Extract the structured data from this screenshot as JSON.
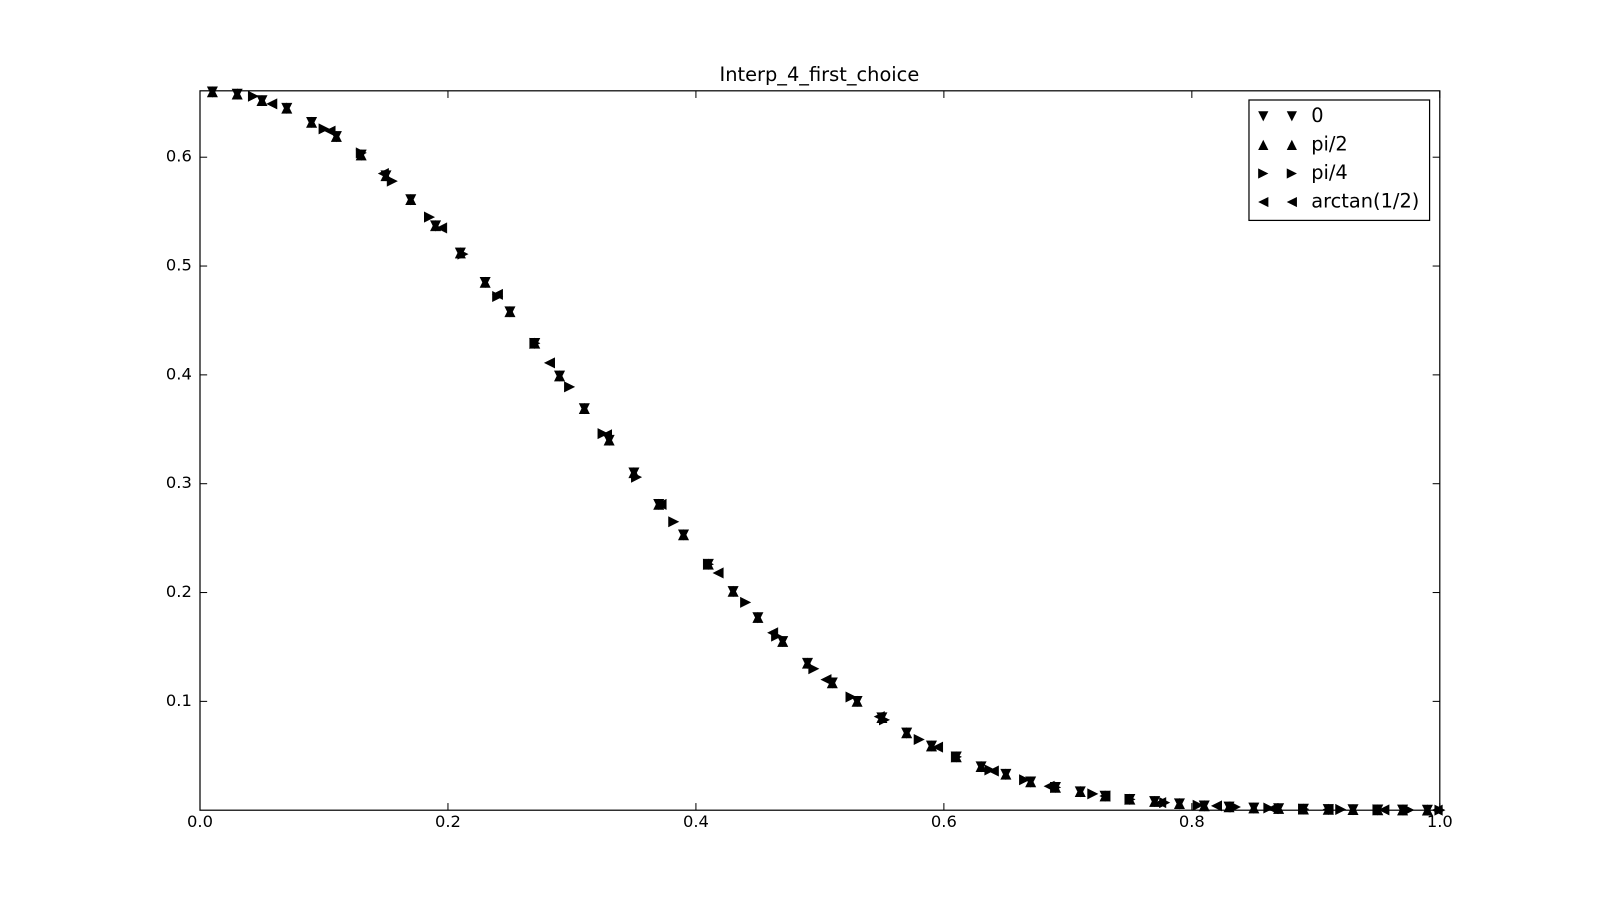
{
  "chart_data": {
    "type": "scatter",
    "title": "Interp_4_first_choice",
    "xlim": [
      0,
      1
    ],
    "ylim": [
      0,
      0.661
    ],
    "xticks": [
      {
        "value": 0,
        "label": "0.0"
      },
      0.2,
      0.4,
      0.6,
      0.8,
      {
        "value": 1,
        "label": "1.0"
      }
    ],
    "yticks": [
      0.1,
      0.2,
      0.3,
      0.4,
      0.5,
      0.6
    ],
    "grid": false,
    "legend": "upper right",
    "series": [
      {
        "name": "0",
        "marker": "v",
        "color": "#000000",
        "x": [
          0.01,
          0.03,
          0.05,
          0.07,
          0.09,
          0.11,
          0.13,
          0.15,
          0.17,
          0.19,
          0.21,
          0.23,
          0.25,
          0.27,
          0.29,
          0.31,
          0.33,
          0.35,
          0.37,
          0.39,
          0.41,
          0.43,
          0.45,
          0.47,
          0.49,
          0.51,
          0.53,
          0.55,
          0.57,
          0.59,
          0.61,
          0.63,
          0.65,
          0.67,
          0.69,
          0.71,
          0.73,
          0.75,
          0.77,
          0.79,
          0.81,
          0.83,
          0.85,
          0.87,
          0.89,
          0.91,
          0.93,
          0.95,
          0.97,
          0.99
        ],
        "values": [
          0.66,
          0.658,
          0.652,
          0.645,
          0.632,
          0.619,
          0.602,
          0.583,
          0.561,
          0.537,
          0.512,
          0.485,
          0.458,
          0.429,
          0.399,
          0.369,
          0.34,
          0.31,
          0.281,
          0.253,
          0.226,
          0.201,
          0.177,
          0.155,
          0.135,
          0.117,
          0.1,
          0.085,
          0.071,
          0.059,
          0.049,
          0.04,
          0.033,
          0.026,
          0.021,
          0.017,
          0.013,
          0.01,
          0.008,
          0.006,
          0.004,
          0.003,
          0.002,
          0.0015,
          0.001,
          0.0007,
          0.0005,
          0.0003,
          0.0002,
          0.0001
        ]
      },
      {
        "name": "pi/2",
        "marker": "^",
        "color": "#000000",
        "x": [
          0.01,
          0.03,
          0.05,
          0.07,
          0.09,
          0.11,
          0.13,
          0.15,
          0.17,
          0.19,
          0.21,
          0.23,
          0.25,
          0.27,
          0.29,
          0.31,
          0.33,
          0.35,
          0.37,
          0.39,
          0.41,
          0.43,
          0.45,
          0.47,
          0.49,
          0.51,
          0.53,
          0.55,
          0.57,
          0.59,
          0.61,
          0.63,
          0.65,
          0.67,
          0.69,
          0.71,
          0.73,
          0.75,
          0.77,
          0.79,
          0.81,
          0.83,
          0.85,
          0.87,
          0.89,
          0.91,
          0.93,
          0.95,
          0.97,
          0.99
        ],
        "values": [
          0.66,
          0.658,
          0.652,
          0.645,
          0.632,
          0.619,
          0.602,
          0.583,
          0.561,
          0.537,
          0.512,
          0.485,
          0.458,
          0.429,
          0.399,
          0.369,
          0.34,
          0.31,
          0.281,
          0.253,
          0.226,
          0.201,
          0.177,
          0.155,
          0.135,
          0.117,
          0.1,
          0.085,
          0.071,
          0.059,
          0.049,
          0.04,
          0.033,
          0.026,
          0.021,
          0.017,
          0.013,
          0.01,
          0.008,
          0.006,
          0.004,
          0.003,
          0.002,
          0.0015,
          0.001,
          0.0007,
          0.0005,
          0.0003,
          0.0002,
          0.0001
        ]
      },
      {
        "name": "pi/4",
        "marker": ">",
        "color": "#000000",
        "x": [
          0.043,
          0.1,
          0.13,
          0.155,
          0.185,
          0.212,
          0.24,
          0.27,
          0.298,
          0.325,
          0.352,
          0.382,
          0.41,
          0.44,
          0.465,
          0.495,
          0.525,
          0.552,
          0.58,
          0.61,
          0.637,
          0.665,
          0.69,
          0.72,
          0.75,
          0.778,
          0.805,
          0.835,
          0.862,
          0.89,
          0.92,
          0.95,
          0.975,
          1.0
        ],
        "values": [
          0.656,
          0.626,
          0.604,
          0.578,
          0.545,
          0.511,
          0.472,
          0.429,
          0.389,
          0.346,
          0.306,
          0.265,
          0.226,
          0.191,
          0.16,
          0.13,
          0.104,
          0.083,
          0.065,
          0.049,
          0.037,
          0.028,
          0.021,
          0.015,
          0.01,
          0.007,
          0.0045,
          0.003,
          0.002,
          0.001,
          0.0007,
          0.0004,
          0.0002,
          0.0001
        ]
      },
      {
        "name": "arctan(1/2)",
        "marker": "<",
        "color": "#000000",
        "x": [
          0.058,
          0.105,
          0.148,
          0.195,
          0.24,
          0.282,
          0.328,
          0.372,
          0.418,
          0.462,
          0.505,
          0.548,
          0.595,
          0.64,
          0.685,
          0.73,
          0.775,
          0.82,
          0.865,
          0.91,
          0.955,
          0.998
        ],
        "values": [
          0.649,
          0.624,
          0.585,
          0.535,
          0.474,
          0.411,
          0.345,
          0.281,
          0.218,
          0.163,
          0.12,
          0.086,
          0.058,
          0.036,
          0.022,
          0.013,
          0.007,
          0.004,
          0.0015,
          0.0007,
          0.0003,
          0.0001
        ]
      }
    ]
  }
}
